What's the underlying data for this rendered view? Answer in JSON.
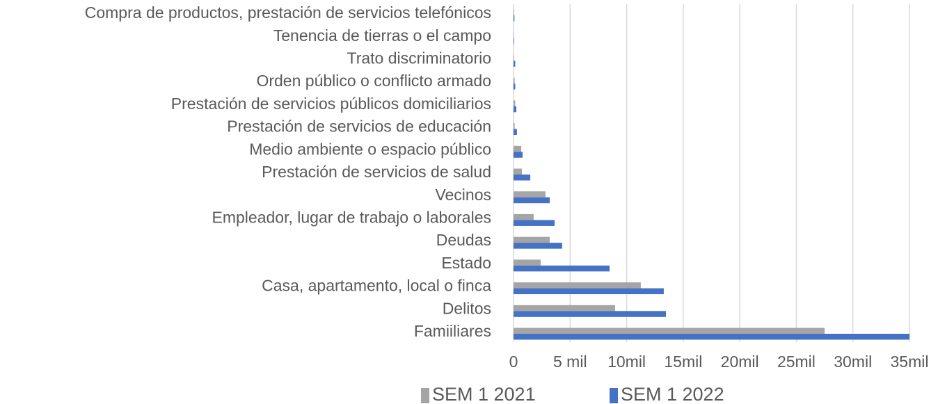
{
  "chart_data": {
    "type": "hbar",
    "categories": [
      "Compra de productos, prestación de servicios telefónicos",
      "Tenencia de tierras o el campo",
      "Trato discriminatorio",
      "Orden público o conflicto armado",
      "Prestación de servicios públicos domiciliarios",
      "Prestación de servicios de educación",
      "Medio ambiente o espacio público",
      "Prestación de servicios de salud",
      "Vecinos",
      "Empleador, lugar de trabajo o laborales",
      "Deudas",
      "Estado",
      "Casa, apartamento, local o finca",
      "Delitos",
      "Famiiliares"
    ],
    "series": [
      {
        "name": "SEM 1 2021",
        "color": "#a5a5a5",
        "values": [
          50,
          30,
          50,
          100,
          150,
          100,
          680,
          740,
          2830,
          1780,
          3200,
          2400,
          11250,
          8980,
          27500
        ]
      },
      {
        "name": "SEM 1 2022",
        "color": "#4472c4",
        "values": [
          80,
          50,
          150,
          150,
          250,
          300,
          800,
          1480,
          3200,
          3630,
          4300,
          8490,
          13280,
          13470,
          35000
        ]
      }
    ],
    "xlim": [
      0,
      35000
    ],
    "xticks": [
      0,
      {
        "value": 5000,
        "label": "5 mil"
      },
      {
        "value": 10000,
        "label": "10mil"
      },
      {
        "value": 15000,
        "label": "15mil"
      },
      {
        "value": 20000,
        "label": "20mil"
      },
      {
        "value": 25000,
        "label": "25mil"
      },
      {
        "value": 30000,
        "label": "30mil"
      },
      {
        "value": 35000,
        "label": "35mil"
      }
    ],
    "grid": true,
    "legend": "bottom"
  }
}
